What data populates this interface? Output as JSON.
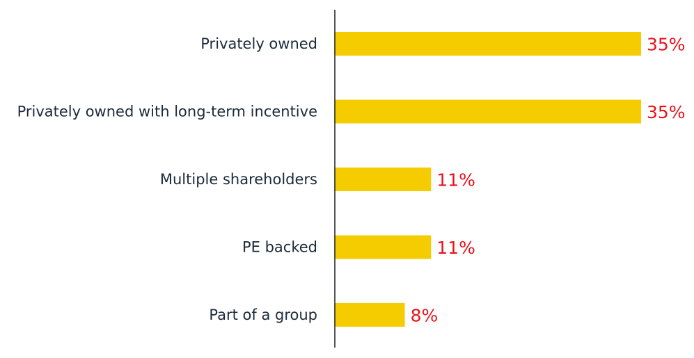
{
  "chart_data": {
    "type": "bar",
    "orientation": "horizontal",
    "categories": [
      "Privately owned",
      "Privately owned with long-term incentive",
      "Multiple shareholders",
      "PE backed",
      "Part of a group"
    ],
    "values": [
      35,
      35,
      11,
      11,
      8
    ],
    "value_labels": [
      "35%",
      "35%",
      "11%",
      "11%",
      "8%"
    ],
    "unit": "%",
    "xlim": [
      0,
      35
    ],
    "grid": false,
    "legend": "none",
    "title": "",
    "xlabel": "",
    "ylabel": ""
  },
  "colors": {
    "bar": "#f5cc00",
    "value_label": "#e8121b",
    "category_label": "#1b2a3a",
    "axis": "#1a1a1a"
  }
}
